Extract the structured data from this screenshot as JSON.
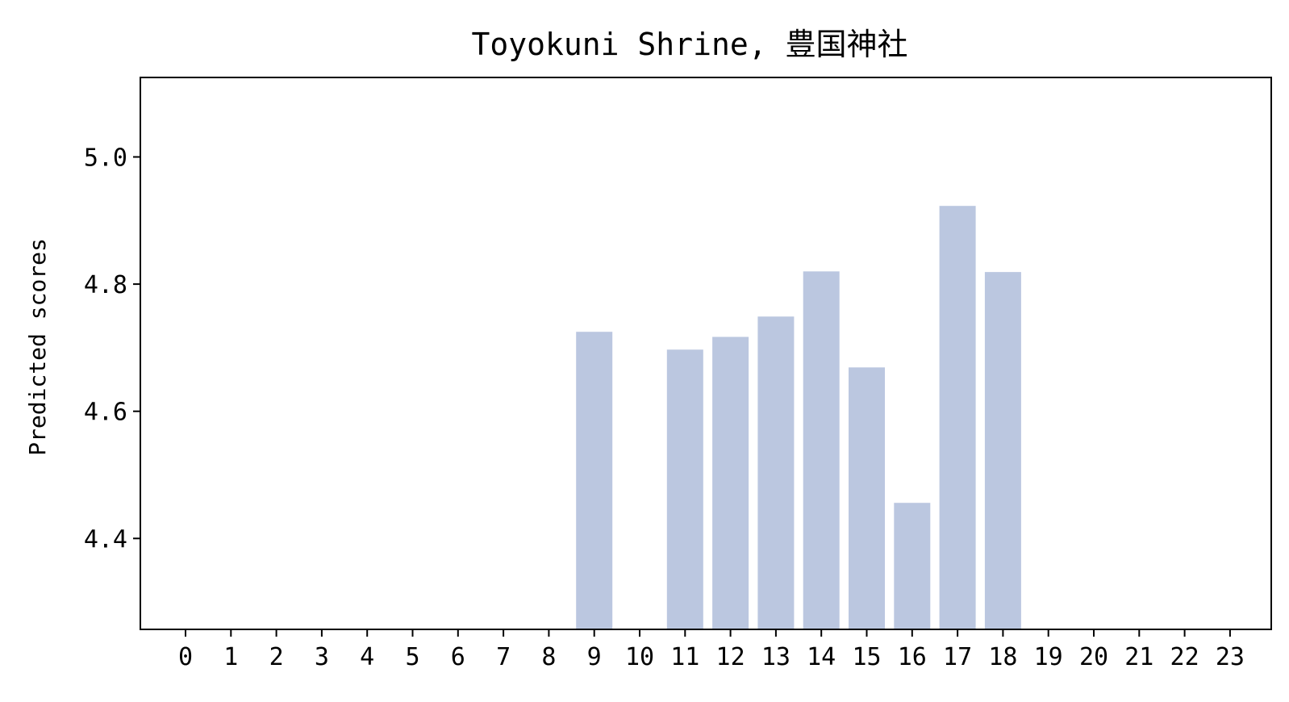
{
  "chart_data": {
    "type": "bar",
    "title": "Toyokuni Shrine, 豊国神社",
    "xlabel": "",
    "ylabel": "Predicted scores",
    "categories": [
      "0",
      "1",
      "2",
      "3",
      "4",
      "5",
      "6",
      "7",
      "8",
      "9",
      "10",
      "11",
      "12",
      "13",
      "14",
      "15",
      "16",
      "17",
      "18",
      "19",
      "20",
      "21",
      "22",
      "23"
    ],
    "values": [
      null,
      null,
      null,
      null,
      null,
      null,
      null,
      null,
      null,
      4.725,
      null,
      4.697,
      4.717,
      4.749,
      4.82,
      4.669,
      4.456,
      4.923,
      4.819,
      null,
      null,
      null,
      null,
      null
    ],
    "ylim": [
      4.257,
      5.125
    ],
    "yticks": [
      4.4,
      4.6,
      4.8,
      5.0
    ],
    "ytick_labels": [
      "4.4",
      "4.6",
      "4.8",
      "5.0"
    ],
    "bar_color": "#bbc7e0",
    "grid": false
  }
}
